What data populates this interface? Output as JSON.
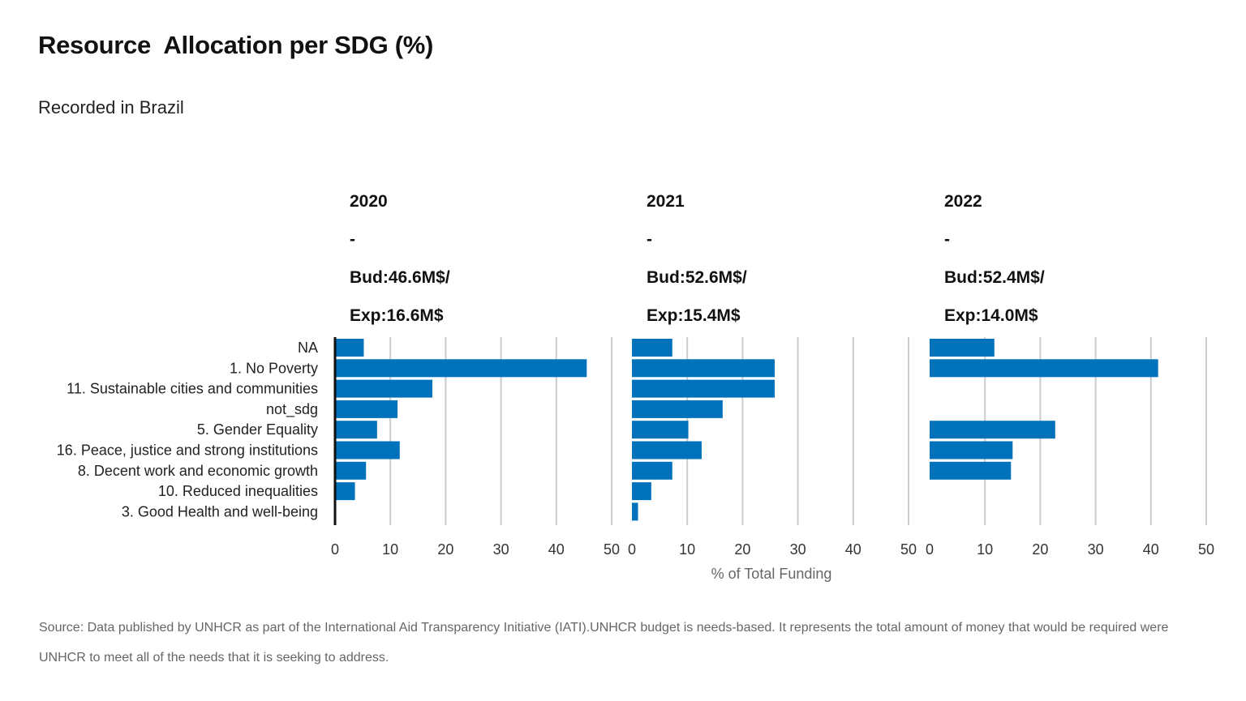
{
  "title": "Resource  Allocation per SDG (%)",
  "subtitle": "Recorded in Brazil",
  "source_note": "Source: Data published by UNHCR as part of the International  Aid Transparency Initiative (IATI).UNHCR budget is needs-based. It represents the total amount of money that would be required were UNHCR to meet all of the needs that it is seeking to address.",
  "bar_color": "#0072bc",
  "chart_data": {
    "type": "bar",
    "orientation": "horizontal",
    "categories": [
      "NA",
      "1. No Poverty",
      "11. Sustainable cities and communities",
      "not_sdg",
      "5. Gender Equality",
      "16. Peace, justice and strong institutions",
      "8. Decent work and economic growth",
      "10. Reduced inequalities",
      "3. Good Health and well-being"
    ],
    "xlabel": "% of Total Funding",
    "xlim": [
      0,
      50
    ],
    "xticks": [
      0,
      10,
      20,
      30,
      40,
      50
    ],
    "grid": true,
    "panels": [
      {
        "year": "2020",
        "separator": "-",
        "budget": "Bud:46.6M$/",
        "expenditure": "Exp:16.6M$",
        "values": [
          5.2,
          45.5,
          17.6,
          11.3,
          7.6,
          11.7,
          5.6,
          3.6,
          0.2
        ]
      },
      {
        "year": "2021",
        "separator": "-",
        "budget": "Bud:52.6M$/",
        "expenditure": "Exp:15.4M$",
        "values": [
          7.3,
          25.8,
          25.8,
          16.4,
          10.2,
          12.6,
          7.3,
          3.5,
          1.1
        ]
      },
      {
        "year": "2022",
        "separator": "-",
        "budget": "Bud:52.4M$/",
        "expenditure": "Exp:14.0M$",
        "values": [
          11.7,
          41.3,
          0,
          0,
          22.7,
          15.0,
          14.7,
          0,
          0
        ]
      }
    ]
  }
}
